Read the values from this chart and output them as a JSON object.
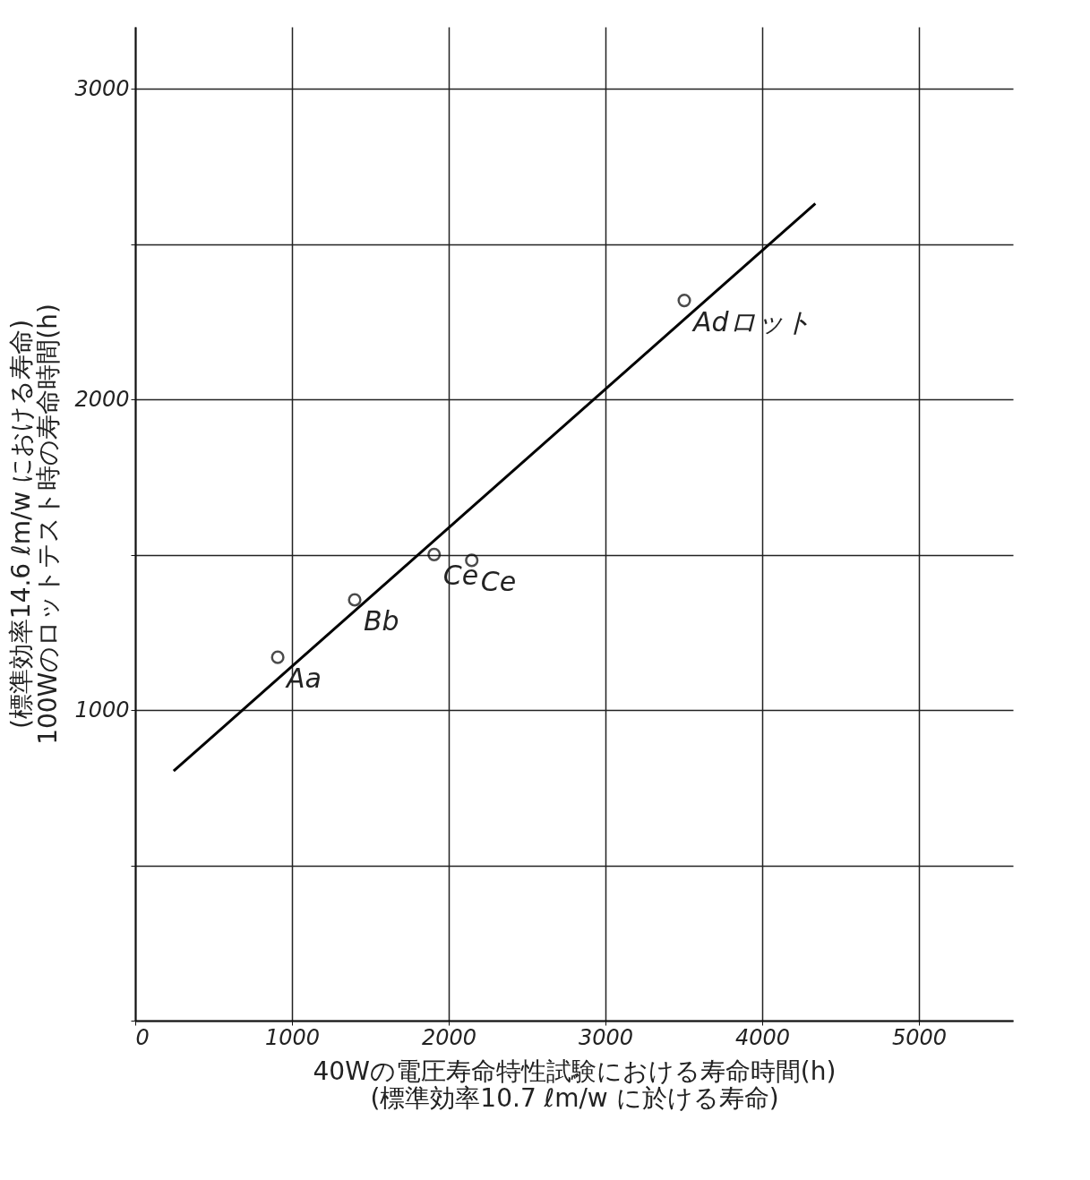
{
  "chart_data": {
    "type": "scatter",
    "xlabel": "40Wの電圧寿命特性試験における寿命時間(h)\n(標準効率10.7 ℓm/w に於ける寿命)",
    "ylabel": "(標準効率14.6 ℓm/w における寿命)\n100Wのロットテスト時の寿命時間(h)",
    "xlim": [
      0,
      5600
    ],
    "ylim": [
      0,
      3200
    ],
    "xticks": [
      0,
      1000,
      2000,
      3000,
      4000,
      5000
    ],
    "yticks": [
      {
        "value": 0,
        "label": null
      },
      {
        "value": 500,
        "label": null
      },
      1000,
      {
        "value": 1500,
        "label": null
      },
      2000,
      {
        "value": 2500,
        "label": null
      },
      3000
    ],
    "grid": true,
    "marker": "circle",
    "series": [
      {
        "color": "#000000",
        "x": [
          909,
          1400,
          1907,
          2147,
          3503
        ],
        "values": [
          1170,
          1355,
          1501,
          1482,
          2319
        ]
      },
      {
        "type": "line",
        "color": "#000000",
        "marker": "none",
        "line_style": "solid",
        "x": [
          245,
          4339
        ],
        "values": [
          804,
          2631
        ]
      }
    ],
    "annotations": [
      {
        "text": "Aa",
        "x": 909,
        "y": 1170
      },
      {
        "text": "Bb",
        "x": 1400,
        "y": 1355
      },
      {
        "text": "Ce",
        "x": 1907,
        "y": 1501
      },
      {
        "text": "Ce",
        "x": 2147,
        "y": 1482
      },
      {
        "text": "Adロット",
        "x": 3503,
        "y": 2319
      }
    ]
  }
}
